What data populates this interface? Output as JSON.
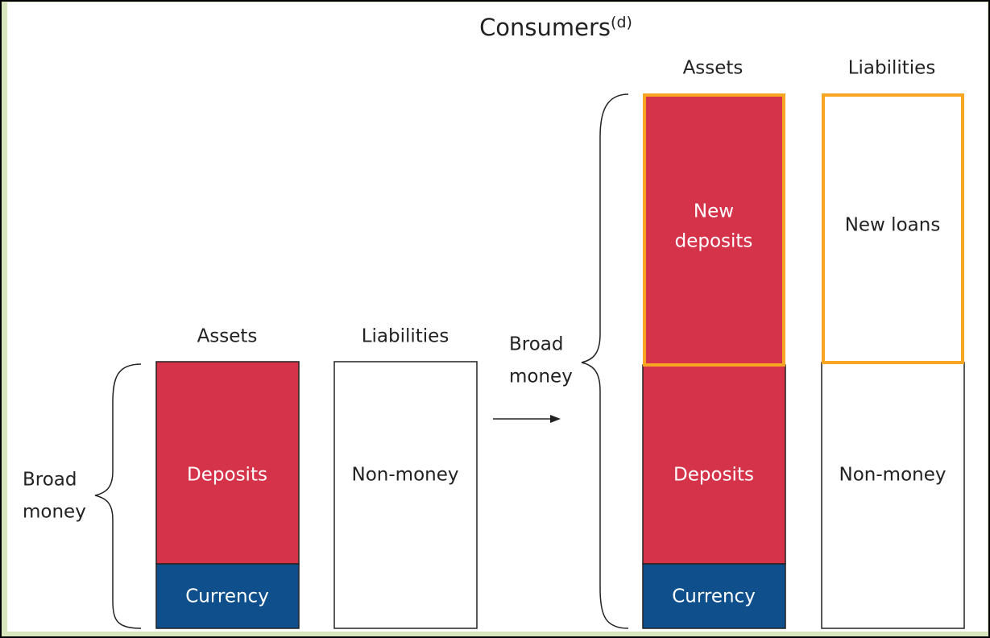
{
  "title": "Consumers",
  "title_note": "(d)",
  "before": {
    "assets_heading": "Assets",
    "liabilities_heading": "Liabilities",
    "deposits": "Deposits",
    "currency": "Currency",
    "non_money": "Non-money",
    "broad_money": [
      "Broad",
      "money"
    ]
  },
  "after": {
    "assets_heading": "Assets",
    "liabilities_heading": "Liabilities",
    "new_deposits": [
      "New",
      "deposits"
    ],
    "new_loans": "New loans",
    "deposits": "Deposits",
    "currency": "Currency",
    "non_money": "Non-money",
    "broad_money": [
      "Broad",
      "money"
    ]
  }
}
